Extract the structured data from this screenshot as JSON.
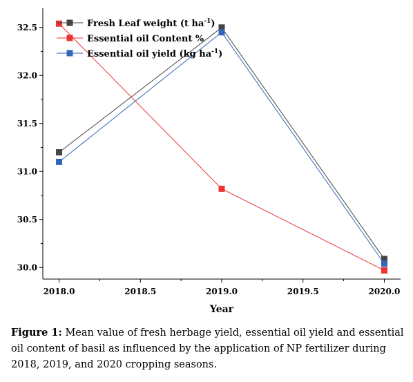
{
  "chart_data": {
    "type": "line",
    "xlabel": "Year",
    "ylabel": "",
    "xlim": [
      2017.9,
      2020.1
    ],
    "ylim": [
      29.88,
      32.7
    ],
    "x_ticks": [
      "2018.0",
      "2018.5",
      "2019.0",
      "2019.5",
      "2020.0"
    ],
    "y_ticks": [
      "30.0",
      "30.5",
      "31.0",
      "31.5",
      "32.0",
      "32.5"
    ],
    "x": [
      2018.0,
      2019.0,
      2020.0
    ],
    "series": [
      {
        "name": "Fresh Leaf weight (t ha-1)",
        "name_main": "Fresh Leaf weight (t ha",
        "name_sup": "-1",
        "name_tail": ")",
        "color": "#444444",
        "values": [
          31.2,
          32.5,
          30.09
        ]
      },
      {
        "name": "Essential oil Content %",
        "name_main": "Essential oil Content %",
        "name_sup": "",
        "name_tail": "",
        "color": "#ee3333",
        "values": [
          32.54,
          30.82,
          29.97
        ]
      },
      {
        "name": "Essential oil yield (kg ha-1)",
        "name_main": "Essential oil yield (kg ha",
        "name_sup": "-1",
        "name_tail": ")",
        "color": "#3366bb",
        "values": [
          31.1,
          32.45,
          30.04
        ]
      }
    ],
    "legend_position": "top-left"
  },
  "caption": {
    "label": "Figure 1:",
    "text": " Mean value of fresh herbage yield, essential oil yield and essential oil content of basil as influenced by the application of NP fertilizer during 2018, 2019, and 2020 cropping seasons."
  }
}
